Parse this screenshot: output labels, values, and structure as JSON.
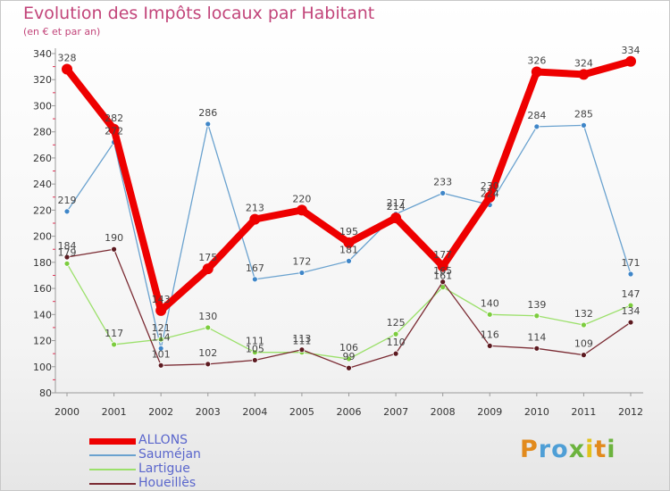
{
  "header": {
    "title": "Evolution des Impôts locaux par Habitant",
    "subtitle": "(en € et par an)"
  },
  "logo": {
    "text": "Proxiti"
  },
  "chart_data": {
    "type": "line",
    "title": "Evolution des Impôts locaux par Habitant",
    "subtitle": "(en € et par an)",
    "xlabel": "",
    "ylabel": "",
    "ylim": [
      80,
      340
    ],
    "ytick_step": 20,
    "grid": false,
    "legend_position": "bottom-left",
    "x": [
      "2000",
      "2001",
      "2002",
      "2003",
      "2004",
      "2005",
      "2006",
      "2007",
      "2008",
      "2009",
      "2010",
      "2011",
      "2012"
    ],
    "yticks": [
      "80",
      "100",
      "120",
      "140",
      "160",
      "180",
      "200",
      "220",
      "240",
      "260",
      "280",
      "300",
      "320",
      "340"
    ],
    "series": [
      {
        "name": "ALLONS",
        "color": "#ee0000",
        "emphasis": true,
        "values": [
          328,
          282,
          143,
          175,
          213,
          220,
          195,
          214,
          177,
          230,
          326,
          324,
          334
        ]
      },
      {
        "name": "Sauméjan",
        "color": "#6aa2cf",
        "point_color": "#3f86c8",
        "values": [
          219,
          272,
          114,
          286,
          167,
          172,
          181,
          217,
          233,
          224,
          284,
          285,
          171
        ]
      },
      {
        "name": "Lartigue",
        "color": "#9be06a",
        "point_color": "#7ccc3e",
        "values": [
          179,
          117,
          121,
          130,
          111,
          111,
          106,
          125,
          161,
          140,
          139,
          132,
          147
        ]
      },
      {
        "name": "Houeillès",
        "color": "#7a2a32",
        "point_color": "#5c1a20",
        "values": [
          184,
          190,
          101,
          102,
          105,
          113,
          99,
          110,
          165,
          116,
          114,
          109,
          134
        ]
      }
    ]
  }
}
